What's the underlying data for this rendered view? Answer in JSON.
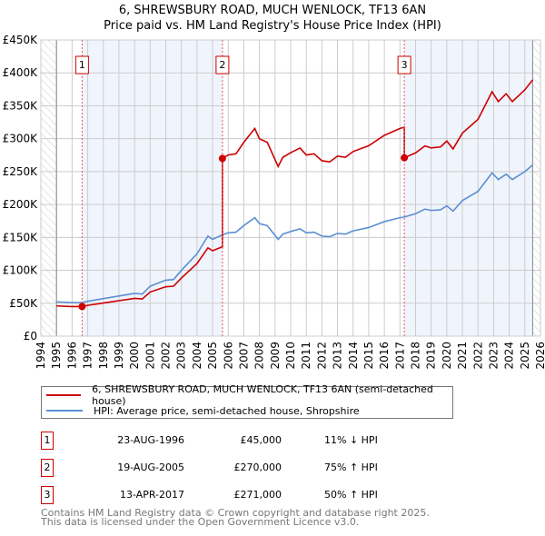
{
  "title_line1": "6, SHREWSBURY ROAD, MUCH WENLOCK, TF13 6AN",
  "title_line2": "Price paid vs. HM Land Registry's House Price Index (HPI)",
  "chart_data": {
    "type": "line",
    "xlim": [
      1994,
      2026
    ],
    "ylim": [
      0,
      450000
    ],
    "x_ticks": [
      1994,
      1995,
      1996,
      1997,
      1998,
      1999,
      2000,
      2001,
      2002,
      2003,
      2004,
      2005,
      2006,
      2007,
      2008,
      2009,
      2010,
      2011,
      2012,
      2013,
      2014,
      2015,
      2016,
      2017,
      2018,
      2019,
      2020,
      2021,
      2022,
      2023,
      2024,
      2025,
      2026
    ],
    "y_ticks": [
      0,
      50000,
      100000,
      150000,
      200000,
      250000,
      300000,
      350000,
      400000,
      450000
    ],
    "y_tick_labels": [
      "£0",
      "£50K",
      "£100K",
      "£150K",
      "£200K",
      "£250K",
      "£300K",
      "£350K",
      "£400K",
      "£450K"
    ],
    "data_start": 1995,
    "data_end": 2025.5,
    "colors": {
      "property": "#cc0000",
      "hpi": "#5b8fd4",
      "shade": "#f0f4fc"
    },
    "hpi_series": {
      "name": "HPI: Average price, semi-detached house, Shropshire",
      "x": [
        1995,
        1996,
        1996.64,
        1997,
        1998,
        1999,
        2000,
        2000.5,
        2001,
        2002,
        2002.5,
        2003,
        2004,
        2004.7,
        2005,
        2005.63,
        2006,
        2006.5,
        2007,
        2007.7,
        2008,
        2008.5,
        2009.2,
        2009.5,
        2010,
        2010.6,
        2011,
        2011.5,
        2012,
        2012.5,
        2013,
        2013.5,
        2014,
        2015,
        2016,
        2017,
        2017.28,
        2018,
        2018.6,
        2019,
        2019.6,
        2020,
        2020.4,
        2021,
        2022,
        2022.9,
        2023.3,
        2023.8,
        2024.2,
        2025,
        2025.5
      ],
      "y": [
        52000,
        51000,
        51000,
        53000,
        57000,
        61000,
        65000,
        64000,
        76000,
        85000,
        86000,
        100000,
        125000,
        152000,
        147000,
        154000,
        157000,
        158000,
        168000,
        180000,
        171000,
        168000,
        147000,
        155000,
        159000,
        163000,
        157000,
        158000,
        152000,
        151000,
        156000,
        155000,
        160000,
        165000,
        174000,
        180000,
        181000,
        186000,
        193000,
        191000,
        192000,
        198000,
        190000,
        206000,
        220000,
        248000,
        238000,
        246000,
        238000,
        250000,
        260000
      ]
    },
    "property_series": {
      "name": "6, SHREWSBURY ROAD, MUCH WENLOCK, TF13 6AN (semi-detached house)"
    },
    "sales": [
      {
        "label": "1",
        "x": 1996.64,
        "price": 45000
      },
      {
        "label": "2",
        "x": 2005.63,
        "price": 270000
      },
      {
        "label": "3",
        "x": 2017.28,
        "price": 271000
      }
    ]
  },
  "legend": {
    "property": "6, SHREWSBURY ROAD, MUCH WENLOCK, TF13 6AN (semi-detached house)",
    "hpi": "HPI: Average price, semi-detached house, Shropshire"
  },
  "transactions": [
    {
      "num": "1",
      "date": "23-AUG-1996",
      "price": "£45,000",
      "rel": "11% ↓ HPI"
    },
    {
      "num": "2",
      "date": "19-AUG-2005",
      "price": "£270,000",
      "rel": "75% ↑ HPI"
    },
    {
      "num": "3",
      "date": "13-APR-2017",
      "price": "£271,000",
      "rel": "50% ↑ HPI"
    }
  ],
  "footer_line1": "Contains HM Land Registry data © Crown copyright and database right 2025.",
  "footer_line2": "This data is licensed under the Open Government Licence v3.0."
}
